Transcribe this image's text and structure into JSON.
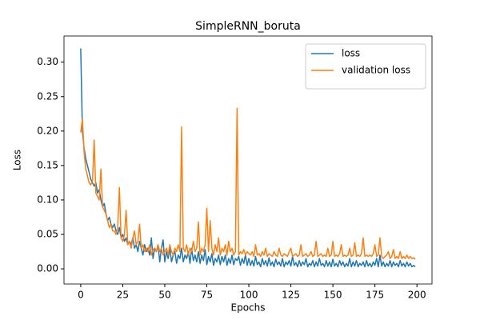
{
  "chart_data": {
    "type": "line",
    "title": "SimpleRNN_boruta",
    "xlabel": "Epochs",
    "ylabel": "Loss",
    "x": [
      0,
      1,
      2,
      3,
      4,
      5,
      6,
      7,
      8,
      9,
      10,
      11,
      12,
      13,
      14,
      15,
      16,
      17,
      18,
      19,
      20,
      21,
      22,
      23,
      24,
      25,
      26,
      27,
      28,
      29,
      30,
      31,
      32,
      33,
      34,
      35,
      36,
      37,
      38,
      39,
      40,
      41,
      42,
      43,
      44,
      45,
      46,
      47,
      48,
      49,
      50,
      51,
      52,
      53,
      54,
      55,
      56,
      57,
      58,
      59,
      60,
      61,
      62,
      63,
      64,
      65,
      66,
      67,
      68,
      69,
      70,
      71,
      72,
      73,
      74,
      75,
      76,
      77,
      78,
      79,
      80,
      81,
      82,
      83,
      84,
      85,
      86,
      87,
      88,
      89,
      90,
      91,
      92,
      93,
      94,
      95,
      96,
      97,
      98,
      99,
      100,
      101,
      102,
      103,
      104,
      105,
      106,
      107,
      108,
      109,
      110,
      111,
      112,
      113,
      114,
      115,
      116,
      117,
      118,
      119,
      120,
      121,
      122,
      123,
      124,
      125,
      126,
      127,
      128,
      129,
      130,
      131,
      132,
      133,
      134,
      135,
      136,
      137,
      138,
      139,
      140,
      141,
      142,
      143,
      144,
      145,
      146,
      147,
      148,
      149,
      150,
      151,
      152,
      153,
      154,
      155,
      156,
      157,
      158,
      159,
      160,
      161,
      162,
      163,
      164,
      165,
      166,
      167,
      168,
      169,
      170,
      171,
      172,
      173,
      174,
      175,
      176,
      177,
      178,
      179,
      180,
      181,
      182,
      183,
      184,
      185,
      186,
      187,
      188,
      189,
      190,
      191,
      192,
      193,
      194,
      195,
      196,
      197,
      198,
      199
    ],
    "series": [
      {
        "name": "loss",
        "color": "#1f77b4",
        "values": [
          0.32,
          0.2,
          0.175,
          0.16,
          0.15,
          0.14,
          0.13,
          0.125,
          0.12,
          0.125,
          0.11,
          0.115,
          0.1,
          0.09,
          0.095,
          0.08,
          0.07,
          0.075,
          0.065,
          0.06,
          0.065,
          0.055,
          0.05,
          0.06,
          0.045,
          0.05,
          0.04,
          0.045,
          0.035,
          0.04,
          0.035,
          0.045,
          0.03,
          0.035,
          0.025,
          0.04,
          0.03,
          0.02,
          0.035,
          0.025,
          0.03,
          0.02,
          0.045,
          0.015,
          0.03,
          0.025,
          0.035,
          0.01,
          0.03,
          0.042,
          0.01,
          0.025,
          0.015,
          0.03,
          0.01,
          0.02,
          0.025,
          0.008,
          0.02,
          0.015,
          0.03,
          0.01,
          0.02,
          0.015,
          0.025,
          0.008,
          0.03,
          0.012,
          0.02,
          0.01,
          0.025,
          0.008,
          0.02,
          0.012,
          0.028,
          0.006,
          0.018,
          0.01,
          0.022,
          0.005,
          0.015,
          0.01,
          0.02,
          0.006,
          0.018,
          0.01,
          0.02,
          0.005,
          0.015,
          0.008,
          0.02,
          0.006,
          0.015,
          0.012,
          0.018,
          0.005,
          0.015,
          0.008,
          0.02,
          0.005,
          0.015,
          0.005,
          0.012,
          0.004,
          0.018,
          0.006,
          0.01,
          0.003,
          0.015,
          0.006,
          0.012,
          0.004,
          0.016,
          0.005,
          0.01,
          0.003,
          0.014,
          0.006,
          0.01,
          0.004,
          0.015,
          0.003,
          0.01,
          0.006,
          0.012,
          0.004,
          0.018,
          0.005,
          0.009,
          0.003,
          0.012,
          0.004,
          0.01,
          0.006,
          0.015,
          0.003,
          0.008,
          0.005,
          0.012,
          0.003,
          0.01,
          0.004,
          0.015,
          0.005,
          0.008,
          0.003,
          0.012,
          0.004,
          0.01,
          0.003,
          0.014,
          0.004,
          0.008,
          0.003,
          0.012,
          0.005,
          0.01,
          0.003,
          0.008,
          0.004,
          0.015,
          0.003,
          0.01,
          0.004,
          0.012,
          0.003,
          0.008,
          0.005,
          0.01,
          0.003,
          0.012,
          0.004,
          0.008,
          0.003,
          0.01,
          0.005,
          0.015,
          0.003,
          0.02,
          0.004,
          0.01,
          0.003,
          0.008,
          0.004,
          0.012,
          0.003,
          0.01,
          0.005,
          0.008,
          0.003,
          0.012,
          0.004,
          0.008,
          0.003,
          0.01,
          0.004,
          0.008,
          0.003,
          0.005,
          0.003
        ]
      },
      {
        "name": "validation loss",
        "color": "#ff7f0e",
        "values": [
          0.198,
          0.218,
          0.17,
          0.145,
          0.135,
          0.125,
          0.122,
          0.128,
          0.187,
          0.11,
          0.105,
          0.1,
          0.145,
          0.09,
          0.085,
          0.08,
          0.07,
          0.06,
          0.065,
          0.055,
          0.055,
          0.05,
          0.06,
          0.118,
          0.045,
          0.04,
          0.05,
          0.085,
          0.035,
          0.04,
          0.03,
          0.045,
          0.055,
          0.035,
          0.04,
          0.065,
          0.03,
          0.035,
          0.025,
          0.03,
          0.025,
          0.035,
          0.02,
          0.028,
          0.03,
          0.025,
          0.035,
          0.025,
          0.03,
          0.02,
          0.025,
          0.03,
          0.02,
          0.035,
          0.025,
          0.02,
          0.03,
          0.025,
          0.035,
          0.025,
          0.206,
          0.03,
          0.025,
          0.035,
          0.02,
          0.03,
          0.025,
          0.04,
          0.025,
          0.03,
          0.068,
          0.02,
          0.03,
          0.025,
          0.035,
          0.088,
          0.025,
          0.07,
          0.03,
          0.02,
          0.035,
          0.025,
          0.045,
          0.02,
          0.03,
          0.025,
          0.035,
          0.02,
          0.04,
          0.025,
          0.03,
          0.02,
          0.025,
          0.233,
          0.02,
          0.025,
          0.022,
          0.028,
          0.02,
          0.025,
          0.022,
          0.02,
          0.025,
          0.018,
          0.035,
          0.02,
          0.022,
          0.018,
          0.025,
          0.02,
          0.03,
          0.018,
          0.022,
          0.02,
          0.018,
          0.025,
          0.02,
          0.018,
          0.03,
          0.02,
          0.018,
          0.022,
          0.02,
          0.018,
          0.025,
          0.03,
          0.018,
          0.02,
          0.022,
          0.018,
          0.02,
          0.035,
          0.018,
          0.02,
          0.022,
          0.018,
          0.02,
          0.025,
          0.018,
          0.02,
          0.04,
          0.018,
          0.02,
          0.022,
          0.018,
          0.02,
          0.018,
          0.03,
          0.018,
          0.02,
          0.04,
          0.018,
          0.02,
          0.018,
          0.022,
          0.035,
          0.018,
          0.02,
          0.018,
          0.02,
          0.03,
          0.018,
          0.02,
          0.038,
          0.018,
          0.02,
          0.018,
          0.022,
          0.045,
          0.018,
          0.02,
          0.018,
          0.02,
          0.018,
          0.022,
          0.035,
          0.018,
          0.02,
          0.045,
          0.018,
          0.015,
          0.018,
          0.02,
          0.025,
          0.015,
          0.018,
          0.028,
          0.015,
          0.018,
          0.015,
          0.025,
          0.015,
          0.018,
          0.015,
          0.02,
          0.015,
          0.018,
          0.015,
          0.016,
          0.014
        ]
      }
    ],
    "xlim": [
      -9.95,
      208.95
    ],
    "xticks": [
      0,
      25,
      50,
      75,
      100,
      125,
      150,
      175,
      200
    ],
    "ylim": [
      -0.022,
      0.338
    ],
    "yticks": [
      {
        "value": 0,
        "label": "0.00"
      },
      {
        "value": 0.05,
        "label": "0.05"
      },
      {
        "value": 0.1,
        "label": "0.10"
      },
      {
        "value": 0.15,
        "label": "0.15"
      },
      {
        "value": 0.2,
        "label": "0.20"
      },
      {
        "value": 0.25,
        "label": "0.25"
      },
      {
        "value": 0.3,
        "label": "0.30"
      }
    ],
    "legend": "upper right"
  }
}
